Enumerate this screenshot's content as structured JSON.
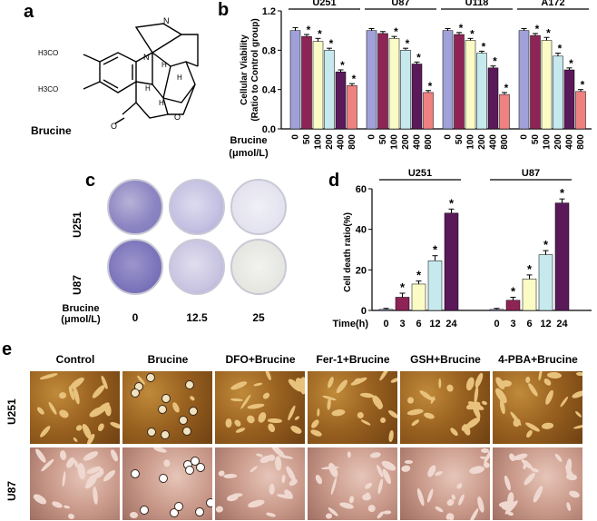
{
  "panels": {
    "a": {
      "letter": "a",
      "compound": "Brucine",
      "substituent_top": "H3CO",
      "substituent_bottom": "H3CO"
    },
    "b": {
      "letter": "b",
      "ylabel_line1": "Cellular Viability",
      "ylabel_line2": "(Ratio to Control group)",
      "xaxis_title_line1": "Brucine",
      "xaxis_title_line2": "(μmol/L)",
      "groups": [
        "U251",
        "U87",
        "U118",
        "A172"
      ]
    },
    "c": {
      "letter": "c",
      "rows": [
        "U251",
        "U87"
      ],
      "conc_title_line1": "Brucine",
      "conc_title_line2": "(μmol/L)",
      "concentrations": [
        "0",
        "12.5",
        "25"
      ]
    },
    "d": {
      "letter": "d",
      "ylabel": "Cell death ratio(%)",
      "xaxis_title": "Time(h)",
      "groups": [
        "U251",
        "U87"
      ]
    },
    "e": {
      "letter": "e",
      "columns": [
        "Control",
        "Brucine",
        "DFO+Brucine",
        "Fer-1+Brucine",
        "GSH+Brucine",
        "4-PBA+Brucine"
      ],
      "rows": [
        "U251",
        "U87"
      ]
    }
  },
  "colors": {
    "c0": "#9fa1d8",
    "c1": "#8e2456",
    "c2": "#fbfbc6",
    "c3": "#c6e9ee",
    "c4": "#5a1a5a",
    "c5": "#f08181"
  },
  "chart_data": [
    {
      "type": "bar",
      "title": "",
      "xlabel": "Brucine (μmol/L)",
      "ylabel": "Cellular Viability (Ratio to Control group)",
      "ylim": [
        0.0,
        1.2
      ],
      "yticks": [
        "0.0",
        "0.4",
        "0.8",
        "1.2"
      ],
      "categories": [
        "0",
        "50",
        "100",
        "200",
        "400",
        "800"
      ],
      "series": [
        {
          "name": "U251",
          "values": [
            1.0,
            0.94,
            0.89,
            0.8,
            0.58,
            0.44
          ],
          "errors": [
            0.03,
            0.02,
            0.03,
            0.02,
            0.02,
            0.02
          ],
          "star": [
            false,
            true,
            true,
            true,
            true,
            true
          ]
        },
        {
          "name": "U87",
          "values": [
            1.0,
            0.97,
            0.92,
            0.8,
            0.66,
            0.37
          ],
          "errors": [
            0.02,
            0.02,
            0.02,
            0.02,
            0.02,
            0.02
          ],
          "star": [
            false,
            false,
            true,
            true,
            true,
            true
          ]
        },
        {
          "name": "U118",
          "values": [
            1.0,
            0.96,
            0.9,
            0.77,
            0.62,
            0.35
          ],
          "errors": [
            0.02,
            0.02,
            0.02,
            0.02,
            0.02,
            0.02
          ],
          "star": [
            false,
            true,
            true,
            true,
            true,
            true
          ]
        },
        {
          "name": "A172",
          "values": [
            1.0,
            0.95,
            0.9,
            0.74,
            0.6,
            0.38
          ],
          "errors": [
            0.02,
            0.02,
            0.03,
            0.03,
            0.02,
            0.02
          ],
          "star": [
            false,
            true,
            true,
            true,
            true,
            true
          ]
        }
      ]
    },
    {
      "type": "bar",
      "title": "",
      "xlabel": "Time(h)",
      "ylabel": "Cell death ratio(%)",
      "ylim": [
        0,
        60
      ],
      "yticks": [
        "0",
        "20",
        "40",
        "60"
      ],
      "categories": [
        "0",
        "3",
        "6",
        "12",
        "24"
      ],
      "series": [
        {
          "name": "U251",
          "values": [
            0.5,
            6.5,
            13,
            24.5,
            48
          ],
          "errors": [
            0.5,
            2,
            1.5,
            2.5,
            2
          ],
          "star": [
            false,
            true,
            true,
            true,
            true
          ]
        },
        {
          "name": "U87",
          "values": [
            0.5,
            5,
            15.5,
            27.5,
            53
          ],
          "errors": [
            0.5,
            1.5,
            2,
            2,
            2
          ],
          "star": [
            false,
            true,
            true,
            true,
            true
          ]
        }
      ]
    }
  ]
}
